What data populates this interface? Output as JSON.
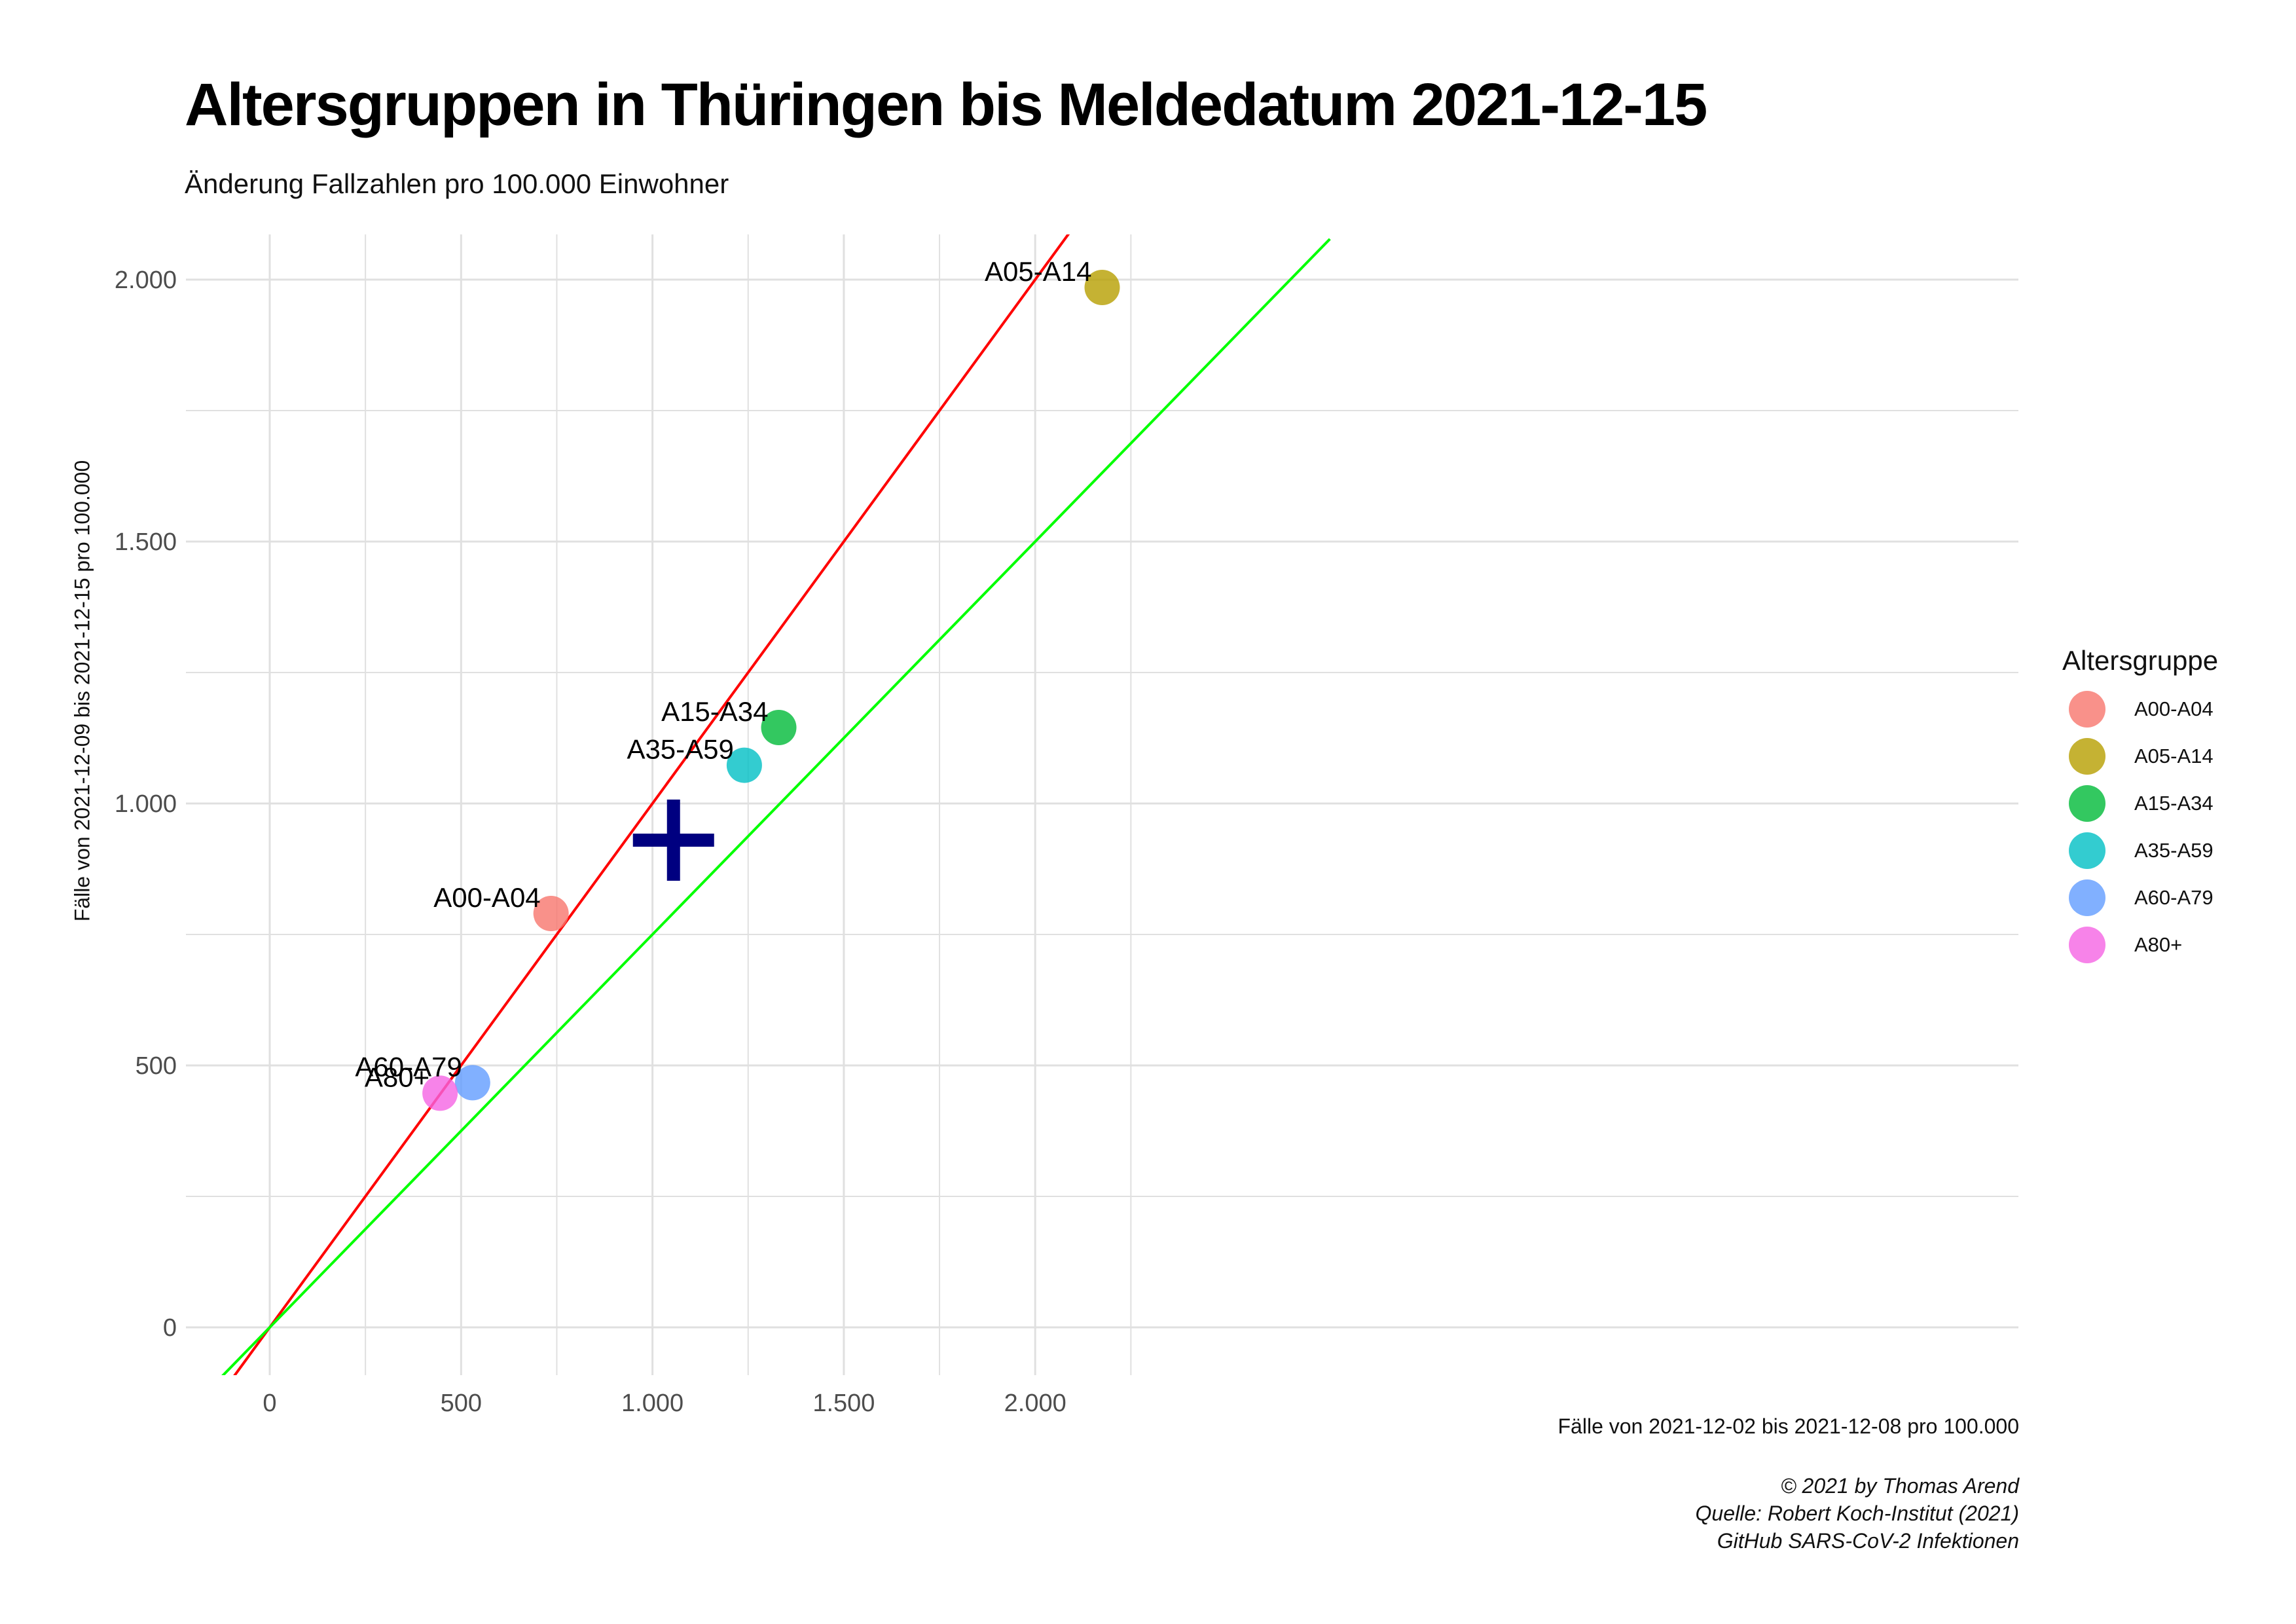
{
  "title": "Altersgruppen in Thüringen bis Meldedatum 2021-12-15",
  "subtitle": "Änderung Fallzahlen pro 100.000 Einwohner",
  "caption": {
    "line1": "© 2021 by Thomas Arend",
    "line2": "Quelle: Robert Koch-Institut (2021)",
    "line3": "GitHub SARS-CoV-2 Infektionen"
  },
  "legend": {
    "title": "Altersgruppe",
    "items": [
      {
        "label": "A00-A04",
        "color": "#F8766D"
      },
      {
        "label": "A05-A14",
        "color": "#B79F00"
      },
      {
        "label": "A15-A34",
        "color": "#00BA38"
      },
      {
        "label": "A35-A59",
        "color": "#00BFC4"
      },
      {
        "label": "A60-A79",
        "color": "#619CFF"
      },
      {
        "label": "A80+",
        "color": "#F564E3"
      }
    ]
  },
  "chart_data": {
    "type": "scatter",
    "title": "Altersgruppen in Thüringen bis Meldedatum 2021-12-15",
    "subtitle": "Änderung Fallzahlen pro 100.000 Einwohner",
    "xlabel": "Fälle von 2021-12-02 bis 2021-12-08 pro 100.000",
    "ylabel": "Fälle von 2021-12-09 bis 2021-12-15 pro 100.000",
    "xlim": [
      -110,
      2270
    ],
    "ylim": [
      -100,
      2100
    ],
    "x_ticks": [
      0,
      500,
      1000,
      1500,
      2000
    ],
    "x_tick_labels": [
      "0",
      "500",
      "1.000",
      "1.500",
      "2.000"
    ],
    "y_ticks": [
      0,
      500,
      1000,
      1500,
      2000
    ],
    "y_tick_labels": [
      "0",
      "500",
      "1.000",
      "1.500",
      "2.000"
    ],
    "grid": true,
    "legend_position": "right",
    "points": [
      {
        "label": "A00-A04",
        "x": 735,
        "y": 790,
        "color": "#F8766D"
      },
      {
        "label": "A05-A14",
        "x": 2175,
        "y": 1985,
        "color": "#B79F00"
      },
      {
        "label": "A15-A34",
        "x": 1330,
        "y": 1145,
        "color": "#00BA38"
      },
      {
        "label": "A35-A59",
        "x": 1240,
        "y": 1073,
        "color": "#00BFC4"
      },
      {
        "label": "A60-A79",
        "x": 530,
        "y": 467,
        "color": "#619CFF"
      },
      {
        "label": "A80+",
        "x": 445,
        "y": 447,
        "color": "#F564E3"
      }
    ],
    "overall_marker": {
      "x": 1055,
      "y": 930,
      "shape": "plus",
      "color": "#000080"
    },
    "reference_lines": [
      {
        "slope": 1.0,
        "intercept": 0,
        "color": "#FF0000"
      },
      {
        "slope": 0.75,
        "intercept": 0,
        "color": "#00FF00"
      }
    ]
  }
}
